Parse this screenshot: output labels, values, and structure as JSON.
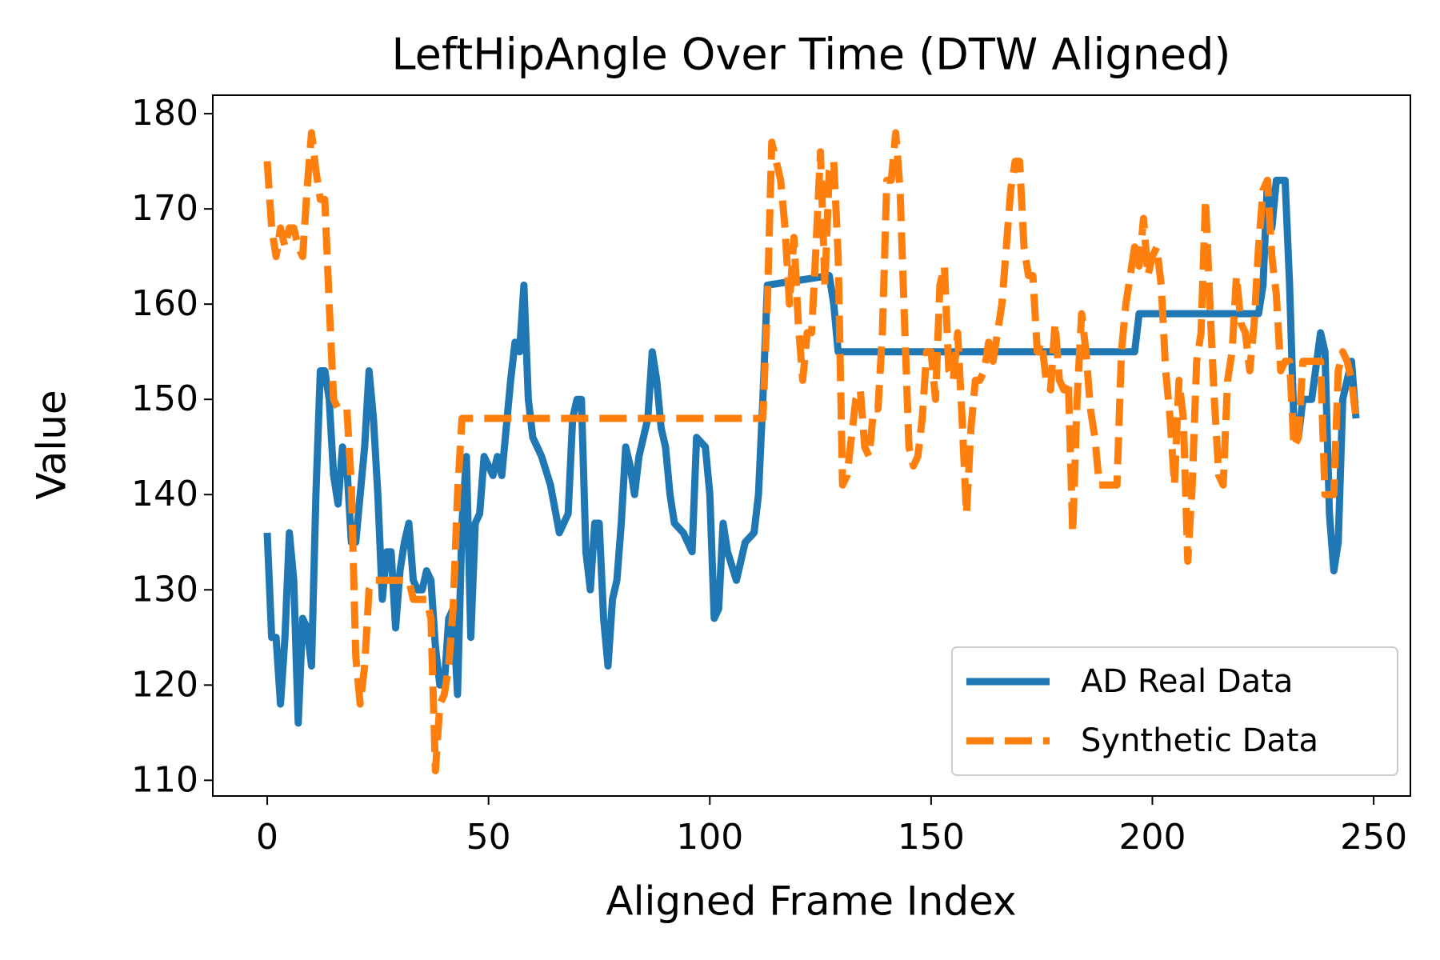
{
  "chart_data": {
    "type": "line",
    "title": "LeftHipAngle Over Time (DTW Aligned)",
    "xlabel": "Aligned Frame Index",
    "ylabel": "Value",
    "xlim": [
      -12.3,
      258.3
    ],
    "ylim": [
      108.35,
      181.94
    ],
    "xticks": [
      0,
      50,
      100,
      150,
      200,
      250
    ],
    "yticks": [
      110,
      120,
      130,
      140,
      150,
      160,
      170,
      180
    ],
    "grid": false,
    "legend": "lower right",
    "series": [
      {
        "name": "AD Real Data",
        "color": "#1f77b4",
        "style": "solid",
        "x": [
          0,
          1,
          2,
          3,
          4,
          5,
          6,
          7,
          8,
          9,
          10,
          11,
          12,
          13,
          14,
          15,
          16,
          17,
          18,
          19,
          20,
          21,
          22,
          23,
          24,
          25,
          26,
          27,
          28,
          29,
          30,
          31,
          32,
          33,
          34,
          35,
          36,
          37,
          38,
          39,
          40,
          41,
          42,
          43,
          44,
          45,
          46,
          47,
          48,
          49,
          50,
          51,
          52,
          53,
          54,
          55,
          56,
          57,
          58,
          59,
          60,
          62,
          64,
          66,
          68,
          69,
          70,
          71,
          72,
          73,
          74,
          75,
          76,
          77,
          78,
          79,
          80,
          81,
          82,
          83,
          84,
          86,
          87,
          88,
          89,
          90,
          91,
          92,
          94,
          96,
          97,
          99,
          100,
          101,
          102,
          103,
          104,
          106,
          108,
          110,
          111,
          112,
          113,
          127,
          128,
          129,
          196,
          197,
          224,
          225,
          226,
          227,
          228,
          230,
          231,
          232,
          233,
          234,
          236,
          238,
          239,
          240,
          241,
          242,
          243,
          244,
          245,
          246
        ],
        "values": [
          136,
          125,
          125,
          118,
          125,
          136,
          131,
          116,
          127,
          126,
          122,
          140,
          153,
          153,
          150,
          142,
          139,
          145,
          143,
          135,
          135,
          140,
          145,
          153,
          148,
          140,
          129,
          134,
          134,
          126,
          132,
          135,
          137,
          131,
          130,
          130,
          132,
          131,
          124,
          120,
          120,
          127,
          128,
          119,
          137,
          144,
          125,
          137,
          138,
          144,
          143,
          142,
          144,
          142,
          147,
          152,
          156,
          155,
          162,
          150,
          146,
          144,
          141,
          136,
          138,
          148,
          150,
          150,
          134,
          130,
          137,
          137,
          127,
          122,
          129,
          131,
          137,
          145,
          143,
          140,
          144,
          148,
          155,
          152,
          147,
          145,
          140,
          137,
          136,
          134,
          146,
          145,
          140,
          127,
          128,
          137,
          134,
          131,
          135,
          136,
          140,
          150,
          162,
          163,
          160,
          155,
          155,
          159,
          159,
          162,
          173,
          168,
          173,
          173,
          162,
          147,
          146,
          150,
          150,
          157,
          155,
          138,
          132,
          135,
          150,
          152,
          154,
          148
        ]
      },
      {
        "name": "Synthetic Data",
        "color": "#ff7f0e",
        "style": "dashed",
        "x": [
          0,
          1,
          2,
          3,
          4,
          5,
          6,
          7,
          8,
          9,
          10,
          11,
          12,
          13,
          14,
          15,
          16,
          17,
          18,
          19,
          20,
          21,
          22,
          23,
          24,
          26,
          28,
          30,
          32,
          33,
          36,
          37,
          38,
          39,
          40,
          41,
          42,
          43,
          44,
          112,
          113,
          114,
          116,
          117,
          118,
          119,
          120,
          121,
          122,
          123,
          124,
          125,
          126,
          127,
          128,
          129,
          130,
          131,
          132,
          133,
          134,
          135,
          136,
          137,
          138,
          139,
          140,
          141,
          142,
          143,
          144,
          145,
          146,
          147,
          148,
          149,
          150,
          151,
          152,
          153,
          154,
          155,
          156,
          157,
          158,
          159,
          160,
          161,
          162,
          163,
          164,
          166,
          168,
          169,
          170,
          171,
          172,
          173,
          174,
          175,
          176,
          177,
          178,
          179,
          180,
          181,
          182,
          183,
          184,
          185,
          186,
          187,
          188,
          189,
          190,
          191,
          192,
          193,
          194,
          195,
          196,
          197,
          198,
          199,
          200,
          201,
          202,
          203,
          204,
          205,
          206,
          207,
          208,
          209,
          210,
          211,
          212,
          213,
          214,
          215,
          216,
          217,
          218,
          219,
          220,
          221,
          222,
          223,
          224,
          225,
          226,
          227,
          228,
          229,
          230,
          231,
          232,
          233,
          234,
          236,
          238,
          239,
          240,
          241,
          242,
          243,
          244,
          245,
          246
        ],
        "values": [
          175,
          168,
          165,
          168,
          166,
          168,
          168,
          166,
          165,
          172,
          178,
          174,
          171,
          171,
          160,
          150,
          149,
          149,
          149,
          141,
          123,
          118,
          122,
          130,
          131,
          131,
          131,
          131,
          131,
          129,
          129,
          127,
          111,
          118,
          119,
          122,
          128,
          140,
          148,
          148,
          160,
          177,
          173,
          168,
          160,
          167,
          158,
          152,
          157,
          157,
          166,
          176,
          162,
          174,
          175,
          165,
          141,
          142,
          146,
          150,
          151,
          145,
          144,
          149,
          149,
          157,
          173,
          173,
          178,
          172,
          158,
          145,
          143,
          144,
          148,
          155,
          155,
          150,
          162,
          164,
          153,
          152,
          157,
          148,
          138,
          147,
          152,
          152,
          153,
          156,
          154,
          160,
          172,
          175,
          175,
          166,
          163,
          163,
          155,
          156,
          152,
          151,
          158,
          152,
          151,
          152,
          136,
          150,
          159,
          155,
          149,
          146,
          141,
          141,
          141,
          141,
          141,
          155,
          160,
          163,
          166,
          164,
          169,
          163,
          165,
          166,
          162,
          153,
          148,
          141,
          152,
          148,
          133,
          141,
          154,
          157,
          171,
          160,
          150,
          142,
          141,
          152,
          155,
          163,
          158,
          157,
          153,
          158,
          166,
          172,
          173,
          165,
          161,
          153,
          154,
          154,
          145,
          146,
          154,
          154,
          154,
          140,
          140,
          140,
          153,
          155,
          154,
          152,
          148
        ]
      }
    ]
  }
}
